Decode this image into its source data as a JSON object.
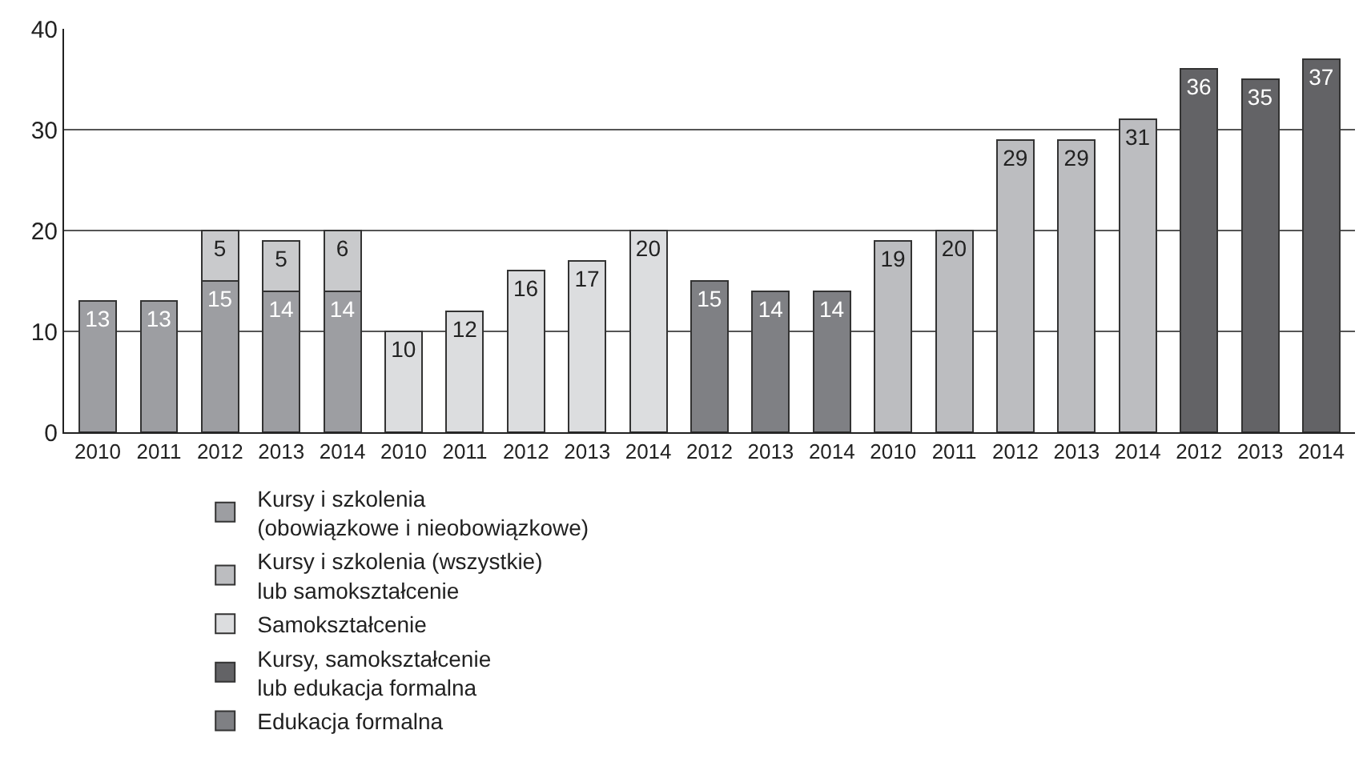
{
  "chart_data": {
    "type": "bar",
    "stacked": true,
    "data_labels": true,
    "legend": "bottom",
    "grid": "y",
    "categories": [
      "2010",
      "2011",
      "2012",
      "2013",
      "2014",
      "2010",
      "2011",
      "2012",
      "2013",
      "2014",
      "2012",
      "2013",
      "2014",
      "2010",
      "2011",
      "2012",
      "2013",
      "2014",
      "2012",
      "2013",
      "2014"
    ],
    "ylim": [
      0,
      40
    ],
    "yticks": [
      0,
      10,
      20,
      30,
      40
    ],
    "series": [
      {
        "name": "Kursy i szkolenia\n(obowiązkowe i nieobowiązkowe)",
        "color": "#9d9ea2",
        "values": [
          13,
          13,
          15,
          14,
          14,
          null,
          null,
          null,
          null,
          null,
          null,
          null,
          null,
          null,
          null,
          null,
          null,
          null,
          null,
          null,
          null
        ]
      },
      {
        "color": "#c9cacc",
        "values": [
          null,
          null,
          5,
          5,
          6,
          null,
          null,
          null,
          null,
          null,
          null,
          null,
          null,
          null,
          null,
          null,
          null,
          null,
          null,
          null,
          null
        ]
      },
      {
        "name": "Samokształcenie",
        "color": "#dcdddf",
        "values": [
          null,
          null,
          null,
          null,
          null,
          10,
          12,
          16,
          17,
          20,
          null,
          null,
          null,
          null,
          null,
          null,
          null,
          null,
          null,
          null,
          null
        ]
      },
      {
        "name": "Edukacja formalna",
        "color": "#7f8084",
        "values": [
          null,
          null,
          null,
          null,
          null,
          null,
          null,
          null,
          null,
          null,
          15,
          14,
          14,
          null,
          null,
          null,
          null,
          null,
          null,
          null,
          null
        ]
      },
      {
        "name": "Kursy i szkolenia (wszystkie)\nlub samokształcenie",
        "color": "#bcbdc0",
        "values": [
          null,
          null,
          null,
          null,
          null,
          null,
          null,
          null,
          null,
          null,
          null,
          null,
          null,
          19,
          20,
          29,
          29,
          31,
          null,
          null,
          null
        ]
      },
      {
        "name": "Kursy, samokształcenie\nlub edukacja formalna",
        "color": "#636366",
        "values": [
          null,
          null,
          null,
          null,
          null,
          null,
          null,
          null,
          null,
          null,
          null,
          null,
          null,
          null,
          null,
          null,
          null,
          null,
          36,
          35,
          37
        ]
      }
    ]
  }
}
